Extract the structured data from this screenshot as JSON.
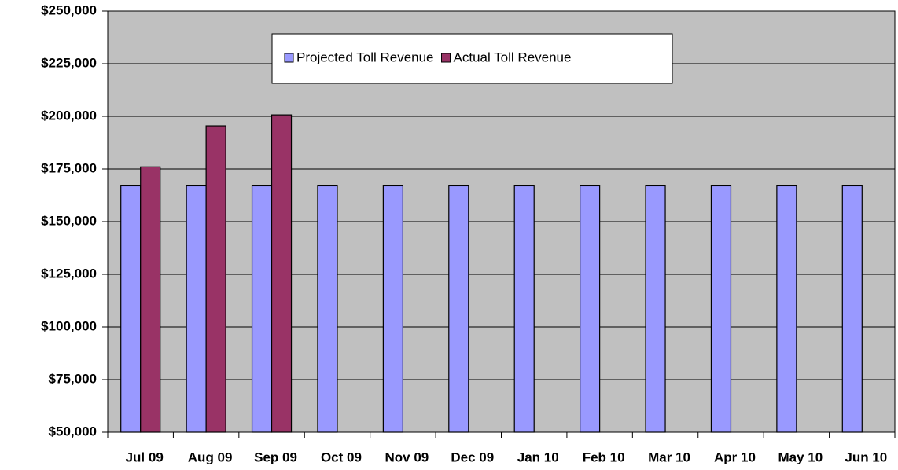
{
  "chart_data": {
    "type": "bar",
    "categories": [
      "Jul 09",
      "Aug 09",
      "Sep 09",
      "Oct 09",
      "Nov 09",
      "Dec 09",
      "Jan 10",
      "Feb 10",
      "Mar 10",
      "Apr 10",
      "May 10",
      "Jun 10"
    ],
    "series": [
      {
        "name": "Projected Toll Revenue",
        "color": "#9999ff",
        "values": [
          167000,
          167000,
          167000,
          167000,
          167000,
          167000,
          167000,
          167000,
          167000,
          167000,
          167000,
          167000
        ]
      },
      {
        "name": "Actual Toll Revenue",
        "color": "#993366",
        "values": [
          176000,
          195500,
          200700,
          null,
          null,
          null,
          null,
          null,
          null,
          null,
          null,
          null
        ]
      }
    ],
    "ylim": [
      50000,
      250000
    ],
    "yticks": [
      {
        "value": 50000,
        "label": "$50,000"
      },
      {
        "value": 75000,
        "label": "$75,000"
      },
      {
        "value": 100000,
        "label": "$100,000"
      },
      {
        "value": 125000,
        "label": "$125,000"
      },
      {
        "value": 150000,
        "label": "$150,000"
      },
      {
        "value": 175000,
        "label": "$175,000"
      },
      {
        "value": 200000,
        "label": "$200,000"
      },
      {
        "value": 225000,
        "label": "$225,000"
      },
      {
        "value": 250000,
        "label": "$250,000"
      }
    ],
    "grid": true,
    "background": "#c0c0c0"
  }
}
